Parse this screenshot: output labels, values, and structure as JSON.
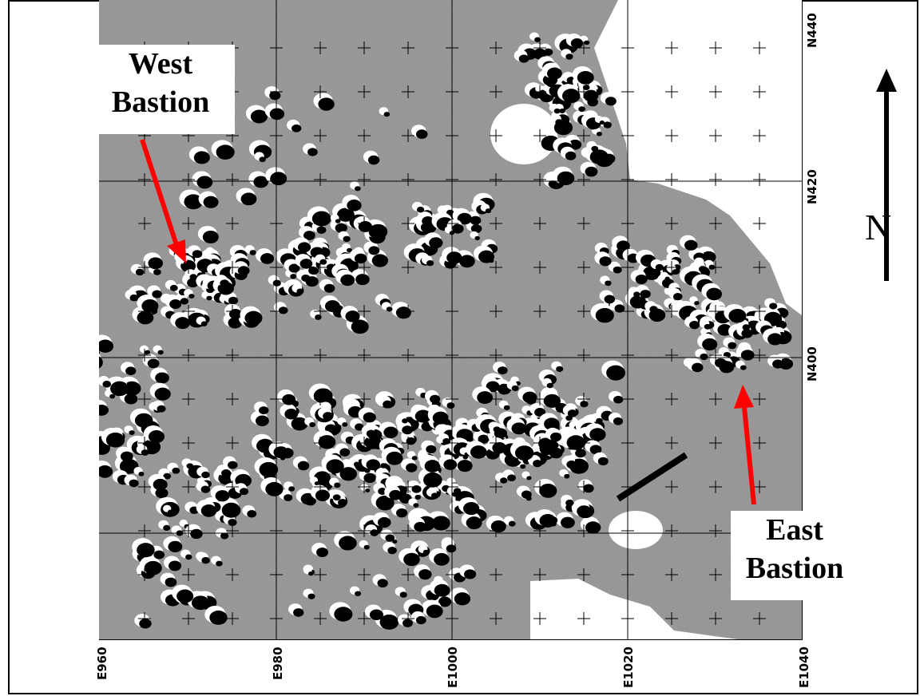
{
  "map": {
    "labels": {
      "west_bastion": [
        "West",
        "Bastion"
      ],
      "east_bastion": [
        "East",
        "Bastion"
      ]
    },
    "north_symbol": "N",
    "x_ticks": [
      "E960",
      "E980",
      "E1000",
      "E1020",
      "E1040"
    ],
    "y_ticks": [
      "N440",
      "N420",
      "N400"
    ],
    "colors": {
      "background_gray": "#8c8c8c",
      "anomaly_dark": "#000000",
      "anomaly_light": "#ffffff",
      "arrow_red": "#ff0000",
      "grid_line": "#000000"
    },
    "icons": [
      "north-arrow-icon",
      "pointer-arrow-icon"
    ]
  }
}
